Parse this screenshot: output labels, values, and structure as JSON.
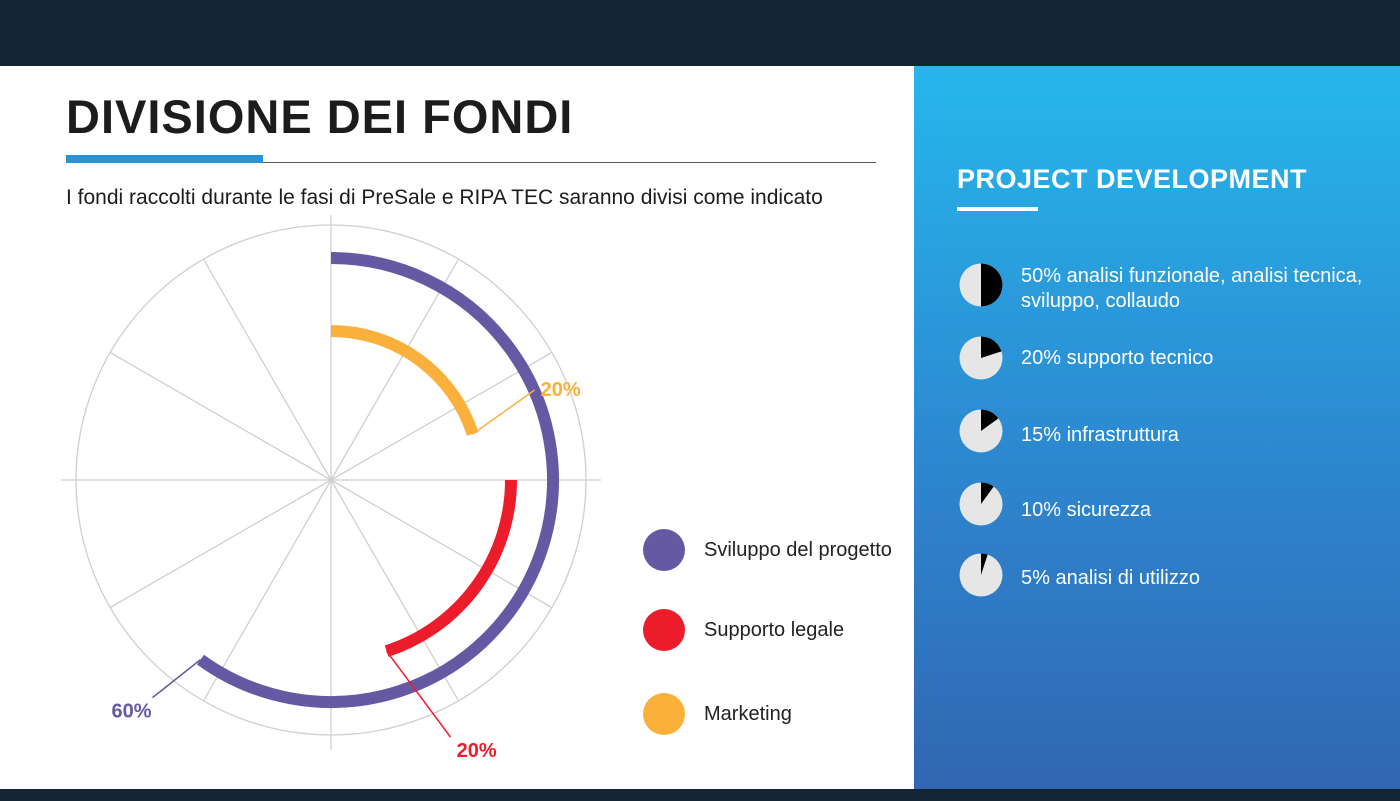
{
  "page": {
    "title": "DIVISIONE DEI FONDI",
    "subtitle": "I fondi raccolti durante le fasi di PreSale e RIPA TEC saranno divisi come indicato"
  },
  "chart_data": {
    "type": "radial-bar",
    "series": [
      {
        "name": "Sviluppo del progetto",
        "value": 60,
        "label": "60%",
        "color": "#6659a4"
      },
      {
        "name": "Supporto legale",
        "value": 20,
        "label": "20%",
        "color": "#ec1c2a"
      },
      {
        "name": "Marketing",
        "value": 20,
        "label": "20%",
        "color": "#fbb03b"
      }
    ],
    "grid": true
  },
  "panel": {
    "title": "PROJECT DEVELOPMENT",
    "items": [
      {
        "percent": 50,
        "label": "50% analisi funzionale, analisi tecnica, sviluppo, collaudo"
      },
      {
        "percent": 20,
        "label": "20% supporto tecnico"
      },
      {
        "percent": 15,
        "label": "15% infrastruttura"
      },
      {
        "percent": 10,
        "label": "10% sicurezza"
      },
      {
        "percent": 5,
        "label": "5% analisi di utilizzo"
      }
    ]
  }
}
